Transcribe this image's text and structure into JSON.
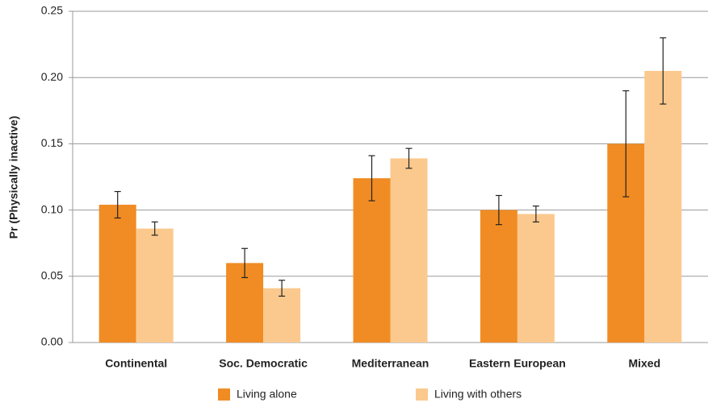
{
  "chart_data": {
    "type": "bar",
    "y_label": "Pr (Physically inactive)",
    "categories": [
      "Continental",
      "Soc. Democratic",
      "Mediterranean",
      "Eastern European",
      "Mixed"
    ],
    "series": [
      {
        "name": "Living alone",
        "color": "#f08c23",
        "values": [
          0.104,
          0.06,
          0.124,
          0.1,
          0.15
        ],
        "errors": [
          0.01,
          0.011,
          0.017,
          0.011,
          0.04
        ]
      },
      {
        "name": "Living with others",
        "color": "#fbc98e",
        "values": [
          0.086,
          0.041,
          0.139,
          0.097,
          0.205
        ],
        "errors": [
          0.005,
          0.006,
          0.0075,
          0.006,
          0.025
        ]
      }
    ],
    "ylim": [
      0,
      0.25
    ],
    "yticks": [
      {
        "value": 0,
        "label": "0.00"
      },
      {
        "value": 0.05,
        "label": "0.05"
      },
      {
        "value": 0.1,
        "label": "0.10"
      },
      0.15,
      {
        "value": 0.2,
        "label": "0.20"
      },
      0.25
    ],
    "grid": true
  }
}
